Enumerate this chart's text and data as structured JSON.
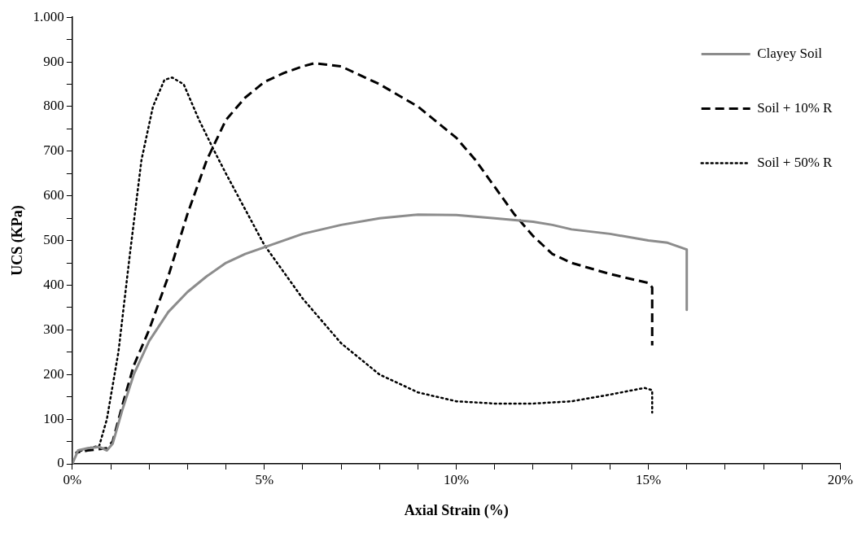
{
  "chart_data": {
    "type": "line",
    "xlabel": "Axial Strain (%)",
    "ylabel": "UCS (KPa)",
    "xlim": [
      0,
      20
    ],
    "xticks": [
      {
        "value": 0,
        "label": "0%"
      },
      {
        "value": 1,
        "label": null
      },
      {
        "value": 2,
        "label": null
      },
      {
        "value": 3,
        "label": null
      },
      {
        "value": 4,
        "label": null
      },
      {
        "value": 5,
        "label": "5%"
      },
      {
        "value": 6,
        "label": null
      },
      {
        "value": 7,
        "label": null
      },
      {
        "value": 8,
        "label": null
      },
      {
        "value": 9,
        "label": null
      },
      {
        "value": 10,
        "label": "10%"
      },
      {
        "value": 11,
        "label": null
      },
      {
        "value": 12,
        "label": null
      },
      {
        "value": 13,
        "label": null
      },
      {
        "value": 14,
        "label": null
      },
      {
        "value": 15,
        "label": "15%"
      },
      {
        "value": 16,
        "label": null
      },
      {
        "value": 17,
        "label": null
      },
      {
        "value": 18,
        "label": null
      },
      {
        "value": 19,
        "label": null
      },
      {
        "value": 20,
        "label": "20%"
      }
    ],
    "ylim": [
      0,
      1000
    ],
    "yticks": [
      0,
      {
        "value": 50,
        "label": null
      },
      100,
      {
        "value": 150,
        "label": null
      },
      200,
      {
        "value": 250,
        "label": null
      },
      300,
      {
        "value": 350,
        "label": null
      },
      400,
      {
        "value": 450,
        "label": null
      },
      500,
      {
        "value": 550,
        "label": null
      },
      600,
      {
        "value": 650,
        "label": null
      },
      700,
      {
        "value": 750,
        "label": null
      },
      800,
      {
        "value": 850,
        "label": null
      },
      900,
      {
        "value": 950,
        "label": null
      },
      {
        "value": 1000,
        "label": "1.000"
      }
    ],
    "grid": false,
    "legend": "top right",
    "marker": "none",
    "series": [
      {
        "name": "Clayey Soil",
        "color": "#8c8c8c",
        "line_style": "solid",
        "x": [
          0,
          0.15,
          0.4,
          0.7,
          0.9,
          1.05,
          1.3,
          1.6,
          2,
          2.5,
          3,
          3.5,
          4,
          4.5,
          5,
          5.5,
          6,
          7,
          8,
          9,
          10,
          11,
          12,
          12.5,
          13,
          14,
          15,
          15.5,
          16,
          16
        ],
        "values": [
          0,
          30,
          35,
          38,
          30,
          45,
          120,
          200,
          275,
          340,
          385,
          420,
          450,
          470,
          485,
          500,
          515,
          535,
          550,
          558,
          557,
          550,
          542,
          535,
          525,
          515,
          500,
          495,
          480,
          345
        ]
      },
      {
        "name": "Soil + 10% R",
        "color": "#000000",
        "line_style": "dashed",
        "x": [
          0.1,
          0.4,
          0.9,
          1.05,
          1.3,
          1.6,
          2,
          2.5,
          3,
          3.5,
          4,
          4.5,
          5,
          5.5,
          6,
          6.3,
          7,
          8,
          9,
          10,
          10.5,
          11,
          11.5,
          12,
          12.5,
          13,
          14,
          15,
          15.1,
          15.1
        ],
        "values": [
          25,
          30,
          35,
          50,
          130,
          220,
          300,
          420,
          560,
          680,
          770,
          820,
          855,
          875,
          890,
          897,
          890,
          850,
          800,
          730,
          680,
          620,
          560,
          510,
          470,
          450,
          425,
          405,
          395,
          265
        ]
      },
      {
        "name": "Soil + 50% R",
        "color": "#000000",
        "line_style": "dotted",
        "x": [
          0.1,
          0.4,
          0.7,
          0.9,
          1.2,
          1.5,
          1.8,
          2.1,
          2.4,
          2.6,
          2.9,
          3.3,
          3.7,
          4,
          4.5,
          5,
          5.5,
          6,
          7,
          8,
          9,
          10,
          11,
          12,
          13,
          14,
          14.9,
          15.1,
          15.1
        ],
        "values": [
          25,
          35,
          40,
          100,
          250,
          470,
          680,
          800,
          860,
          865,
          850,
          770,
          700,
          650,
          570,
          490,
          430,
          370,
          270,
          200,
          160,
          140,
          135,
          135,
          140,
          155,
          170,
          165,
          115
        ]
      }
    ]
  }
}
